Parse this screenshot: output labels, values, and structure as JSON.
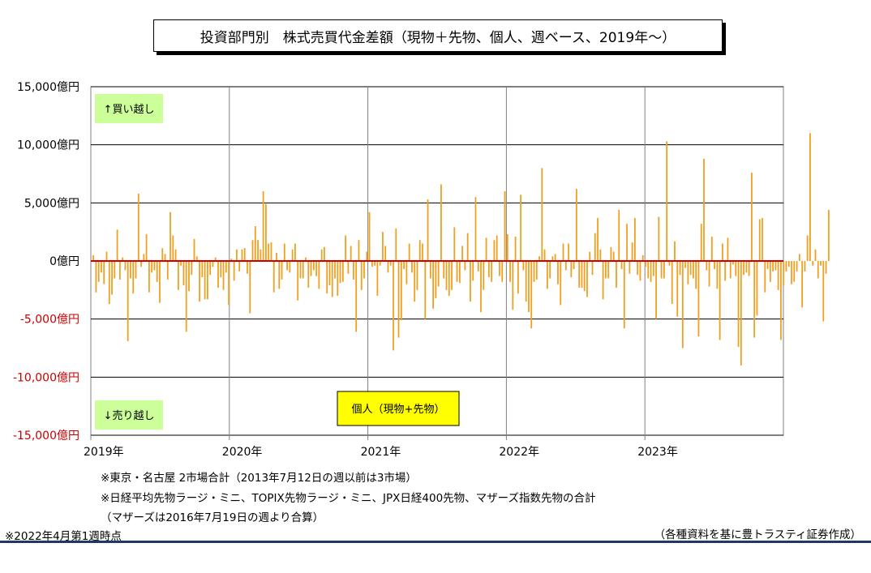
{
  "title": "投資部門別　株式売買代金差額（現物＋先物、個人、週ベース、2019年～）",
  "notes": {
    "note1": "※東京・名古屋 2市場合計（2013年7月12日の週以前は3市場）",
    "note2": "※日経平均先物ラージ・ミニ、TOPIX先物ラージ・ミニ、JPX日経400先物、マザーズ指数先物の合計",
    "note3": "（マザーズは2016年7月19日の週より合算）",
    "note4": "※2022年4月第1週時点",
    "source": "（各種資料を基に豊トラスティ証券作成）"
  },
  "chart_data": {
    "type": "bar",
    "series": [
      {
        "name": "個人（現物+先物）",
        "color": "#f0a020"
      }
    ],
    "legend_placement": "bottom-center",
    "annotations": {
      "buy": "↑買い越し",
      "sell": "↓売り越し"
    },
    "y_unit": "億円",
    "ylim": [
      -15000,
      15000
    ],
    "y_ticks": [
      {
        "value": 15000,
        "label": "15,000億円"
      },
      {
        "value": 10000,
        "label": "10,000億円"
      },
      {
        "value": 5000,
        "label": "5,000億円"
      },
      {
        "value": 0,
        "label": "0億円"
      },
      {
        "value": -5000,
        "label": "-5,000億円"
      },
      {
        "value": -10000,
        "label": "-10,000億円"
      },
      {
        "value": -15000,
        "label": "-15,000億円"
      }
    ],
    "x_ticks": [
      "2019年",
      "2020年",
      "2021年",
      "2022年",
      "2023年"
    ],
    "x_range_years": [
      2019,
      2024
    ],
    "grid": true,
    "zero_line_color": "#cc0000",
    "negative_label_color": "#cc0000",
    "weekly_values": [
      500,
      -2700,
      -1800,
      -1000,
      -2000,
      800,
      -3700,
      -2900,
      -1500,
      2700,
      -1600,
      300,
      -800,
      -6900,
      -1500,
      -2800,
      -1500,
      5800,
      -500,
      600,
      2300,
      -2700,
      -1000,
      -800,
      -1800,
      -3600,
      1100,
      600,
      -1600,
      4200,
      2200,
      1000,
      -2500,
      -400,
      -2100,
      -6100,
      -2600,
      -1200,
      1900,
      400,
      -3500,
      -1400,
      -3300,
      -3300,
      -1200,
      -500,
      300,
      -2300,
      -1400,
      -2500,
      -1000,
      -3800,
      200,
      -1700,
      1000,
      -900,
      1000,
      1100,
      -1100,
      -4500,
      1800,
      3000,
      1800,
      1000,
      6000,
      4900,
      1500,
      1600,
      -2700,
      700,
      -2400,
      -1600,
      1500,
      -800,
      -1000,
      1000,
      1500,
      -3400,
      -1500,
      -1500,
      300,
      -2300,
      -1300,
      -800,
      -1300,
      -2400,
      1000,
      1200,
      -2800,
      -2100,
      -3100,
      -1500,
      -3000,
      -1900,
      -1800,
      2200,
      -1100,
      1300,
      -1600,
      -6100,
      1800,
      -2500,
      -1500,
      800,
      4200,
      -500,
      -400,
      -3000,
      -400,
      2500,
      1300,
      -1000,
      -400,
      -7700,
      2800,
      -6600,
      -5100,
      -700,
      -2000,
      1500,
      -1000,
      -3500,
      -2500,
      1800,
      1500,
      -5000,
      5300,
      -1500,
      -4100,
      -3200,
      -2200,
      6600,
      -1500,
      -2500,
      -3000,
      -2500,
      2900,
      -1800,
      -1900,
      1300,
      -800,
      2400,
      -3500,
      -1700,
      5500,
      -900,
      -4400,
      -2500,
      2000,
      -1400,
      -1800,
      1800,
      2200,
      -1300,
      -1800,
      6000,
      2300,
      -1800,
      -4200,
      2100,
      -2800,
      5700,
      -800,
      -3500,
      -4400,
      -5800,
      -1800,
      -1600,
      400,
      8000,
      1000,
      -2400,
      -1500,
      400,
      600,
      -2000,
      -3800,
      1500,
      -800,
      1500,
      -1400,
      -700,
      6200,
      -2300,
      -2300,
      -2600,
      -3100,
      800,
      -1200,
      2400,
      3700,
      1000,
      -3300,
      -1500,
      -1500,
      1200,
      800,
      -2300,
      4400,
      -700,
      -5800,
      3200,
      -1100,
      1600,
      3700,
      -1200,
      -1700,
      500,
      -500,
      -1500,
      -1800,
      -1300,
      -5000,
      3800,
      -1500,
      -1500,
      10300,
      -400,
      -3700,
      1700,
      -4800,
      -1200,
      -7500,
      -600,
      -2000,
      -1200,
      -1500,
      -2400,
      -6500,
      3200,
      8800,
      -800,
      -2200,
      2100,
      -700,
      -2400,
      -6800,
      1500,
      -1700,
      2000,
      -1500,
      -300,
      -1300,
      -7400,
      -9000,
      -1200,
      -1000,
      -1300,
      7600,
      -6600,
      -4700,
      3600,
      3700,
      -2700,
      -700,
      -1800,
      -900,
      -800,
      -2500,
      -6800,
      -2100,
      -900,
      -500,
      -2000,
      -1800,
      -900,
      600,
      -4000,
      -900,
      2200,
      11000,
      -400,
      1000,
      -1500,
      -400,
      -5200,
      -1100,
      4400
    ]
  }
}
